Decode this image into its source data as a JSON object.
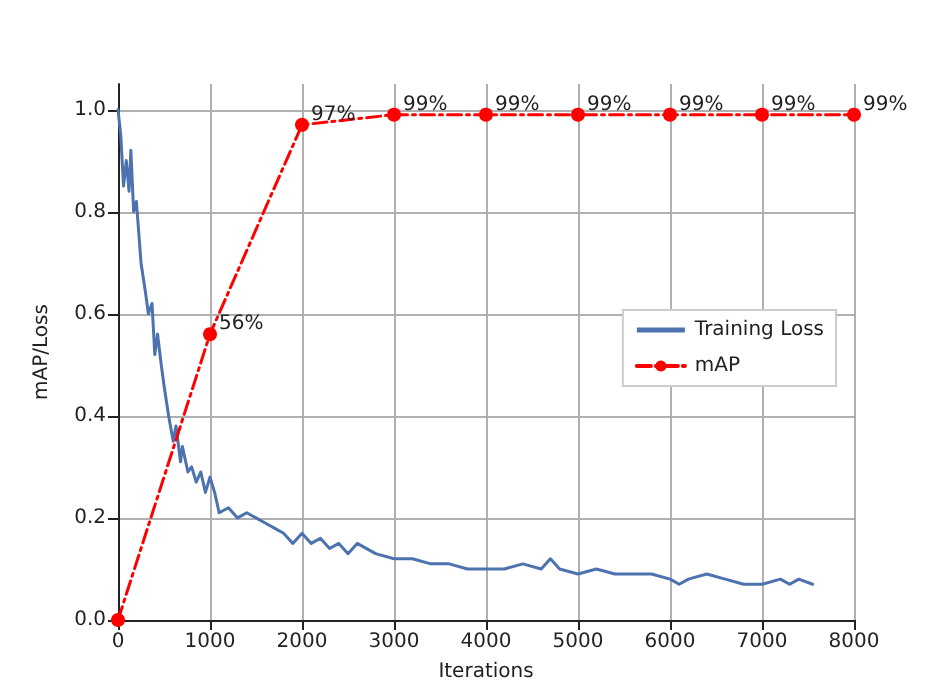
{
  "chart_data": {
    "type": "line",
    "xlabel": "Iterations",
    "ylabel": "mAP/Loss",
    "xlim": [
      0,
      8000
    ],
    "ylim": [
      0,
      1.05
    ],
    "xticks": [
      0,
      1000,
      2000,
      3000,
      4000,
      5000,
      6000,
      7000,
      8000
    ],
    "yticks": [
      {
        "value": 0,
        "label": "0.0"
      },
      {
        "value": 0.2,
        "label": "0.2"
      },
      {
        "value": 0.4,
        "label": "0.4"
      },
      {
        "value": 0.6,
        "label": "0.6"
      },
      {
        "value": 0.8,
        "label": "0.8"
      },
      {
        "value": 1,
        "label": "1.0"
      }
    ],
    "grid": true,
    "legend": "right",
    "series": [
      {
        "name": "Training Loss",
        "color": "#4c72b0",
        "marker": "none",
        "line_style": "solid",
        "x": [
          0,
          30,
          60,
          90,
          120,
          140,
          170,
          200,
          250,
          300,
          330,
          370,
          400,
          430,
          470,
          500,
          550,
          600,
          630,
          680,
          700,
          760,
          800,
          850,
          900,
          950,
          1000,
          1050,
          1100,
          1200,
          1300,
          1400,
          1500,
          1600,
          1700,
          1800,
          1900,
          2000,
          2100,
          2200,
          2300,
          2400,
          2500,
          2600,
          2800,
          3000,
          3200,
          3400,
          3600,
          3800,
          4000,
          4200,
          4400,
          4600,
          4700,
          4800,
          5000,
          5200,
          5400,
          5600,
          5800,
          6000,
          6100,
          6200,
          6400,
          6600,
          6800,
          7000,
          7200,
          7300,
          7400,
          7550
        ],
        "values": [
          1.0,
          0.95,
          0.85,
          0.9,
          0.84,
          0.92,
          0.8,
          0.82,
          0.7,
          0.64,
          0.6,
          0.62,
          0.52,
          0.56,
          0.5,
          0.46,
          0.4,
          0.35,
          0.38,
          0.31,
          0.34,
          0.29,
          0.3,
          0.27,
          0.29,
          0.25,
          0.28,
          0.25,
          0.21,
          0.22,
          0.2,
          0.21,
          0.2,
          0.19,
          0.18,
          0.17,
          0.15,
          0.17,
          0.15,
          0.16,
          0.14,
          0.15,
          0.13,
          0.15,
          0.13,
          0.12,
          0.12,
          0.11,
          0.11,
          0.1,
          0.1,
          0.1,
          0.11,
          0.1,
          0.12,
          0.1,
          0.09,
          0.1,
          0.09,
          0.09,
          0.09,
          0.08,
          0.07,
          0.08,
          0.09,
          0.08,
          0.07,
          0.07,
          0.08,
          0.07,
          0.08,
          0.07
        ]
      },
      {
        "name": "mAP",
        "color": "#ff0000",
        "marker": "circle",
        "line_style": "dashed",
        "x": [
          0,
          1000,
          2000,
          3000,
          4000,
          5000,
          6000,
          7000,
          8000
        ],
        "values": [
          0,
          0.56,
          0.97,
          0.99,
          0.99,
          0.99,
          0.99,
          0.99,
          0.99
        ],
        "value_labels": [
          null,
          "56%",
          "97%",
          "99%",
          "99%",
          "99%",
          "99%",
          "99%",
          "99%"
        ]
      }
    ]
  }
}
